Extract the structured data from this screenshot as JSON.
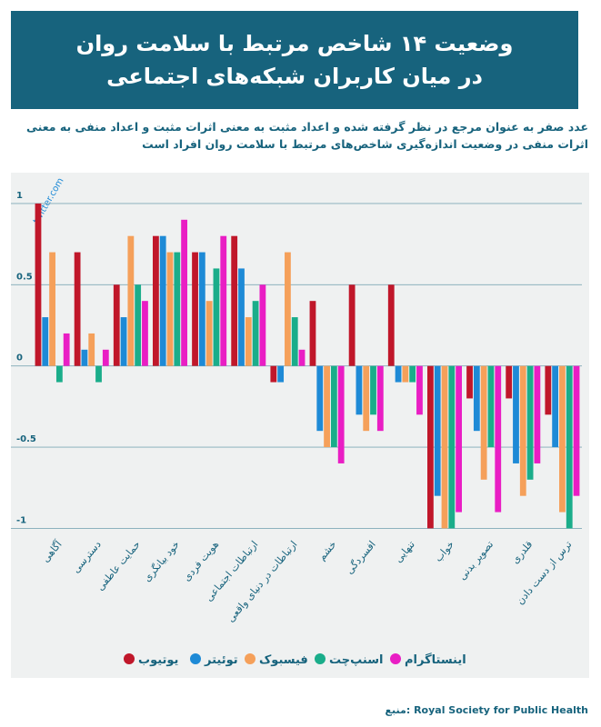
{
  "chart_data": {
    "type": "bar",
    "title": "وضعیت ۱۴ شاخص مرتبط با سلامت روان در میان کاربران شبکه‌های اجتماعی",
    "subtitle": "عدد صفر به عنوان مرجع در نظر گرفته شده و اعداد مثبت به معنی اثرات مثبت و اعداد منفی به معنی اثرات منفی در وضعیت اندازه‌گیری شاخص‌های مرتبط با سلامت روان افراد است",
    "watermark": "twitter.com",
    "source_label": "منبع:",
    "source": "Royal Society for Public Health",
    "categories": [
      "آگاهی",
      "دسترسی",
      "حمایت عاطفی",
      "خود بیانگری",
      "هویت فردی",
      "ارتباطات اجتماعی",
      "ارتباطات در دنیای واقعی",
      "خشم",
      "افسردگی",
      "تنهایی",
      "خواب",
      "تصویر بدنی",
      "قلدری",
      "ترس از دست دادن"
    ],
    "series": [
      {
        "name": "یوتیوب",
        "color": "#c0172a",
        "values": [
          1.0,
          0.7,
          0.5,
          0.8,
          0.7,
          0.8,
          -0.1,
          0.4,
          0.5,
          0.5,
          -1.0,
          -0.2,
          -0.2,
          -0.3
        ]
      },
      {
        "name": "توئیتر",
        "color": "#1e8ad6",
        "values": [
          0.3,
          0.1,
          0.3,
          0.8,
          0.7,
          0.6,
          -0.1,
          -0.4,
          -0.3,
          -0.1,
          -0.8,
          -0.4,
          -0.6,
          -0.5
        ]
      },
      {
        "name": "فیسبوک",
        "color": "#f5a05a",
        "values": [
          0.7,
          0.2,
          0.8,
          0.7,
          0.4,
          0.3,
          0.7,
          -0.5,
          -0.4,
          -0.1,
          -1.0,
          -0.7,
          -0.8,
          -0.9
        ]
      },
      {
        "name": "اسنپ‌چت",
        "color": "#1aad8a",
        "values": [
          -0.1,
          -0.1,
          0.5,
          0.7,
          0.6,
          0.4,
          0.3,
          -0.5,
          -0.3,
          -0.1,
          -1.0,
          -0.5,
          -0.7,
          -1.0
        ]
      },
      {
        "name": "اینستاگرام",
        "color": "#e91ec4",
        "values": [
          0.2,
          0.1,
          0.4,
          0.9,
          0.8,
          0.5,
          0.1,
          -0.6,
          -0.4,
          -0.3,
          -0.9,
          -0.9,
          -0.6,
          -0.8
        ]
      }
    ],
    "ylim": [
      -1.02,
      1.05
    ],
    "yticks": [
      1,
      0.5,
      0,
      -0.5,
      -1
    ],
    "grid": true
  }
}
